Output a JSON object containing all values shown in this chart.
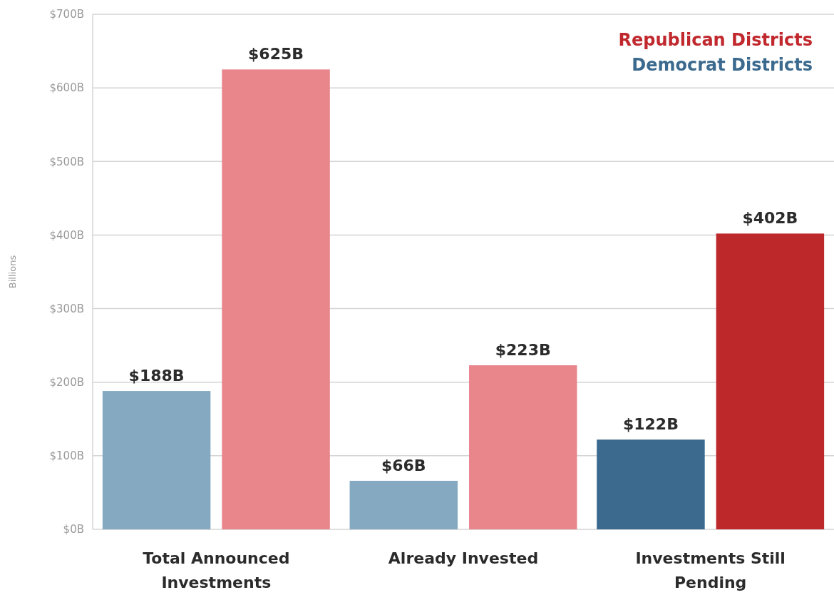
{
  "chart_data": {
    "type": "bar",
    "ylabel": "Billions",
    "categories": [
      "Total Announced Investments",
      "Already Invested",
      "Investments Still Pending"
    ],
    "series": [
      {
        "name": "Democrat Districts",
        "color": "#3b6a8e",
        "colors": [
          "#84a9c0",
          "#84a9c0",
          "#3b6a8e"
        ],
        "values": [
          188,
          66,
          122
        ]
      },
      {
        "name": "Republican Districts",
        "color": "#c0282d",
        "colors": [
          "#e8868c",
          "#e8868c",
          "#bd282b"
        ],
        "values": [
          625,
          223,
          402
        ]
      }
    ],
    "ylim": [
      0,
      700
    ],
    "yticks": [
      {
        "value": 0,
        "label": "$0B"
      },
      {
        "value": 100,
        "label": "$100B"
      },
      {
        "value": 200,
        "label": "$200B"
      },
      {
        "value": 300,
        "label": "$300B"
      },
      {
        "value": 400,
        "label": "$400B"
      },
      {
        "value": 500,
        "label": "$500B"
      },
      {
        "value": 600,
        "label": "$600B"
      },
      {
        "value": 700,
        "label": "$700B"
      }
    ],
    "value_labels": [
      [
        "$188B",
        "$66B",
        "$122B"
      ],
      [
        "$625B",
        "$223B",
        "$402B"
      ]
    ],
    "grid": "y",
    "legend": "top right"
  }
}
